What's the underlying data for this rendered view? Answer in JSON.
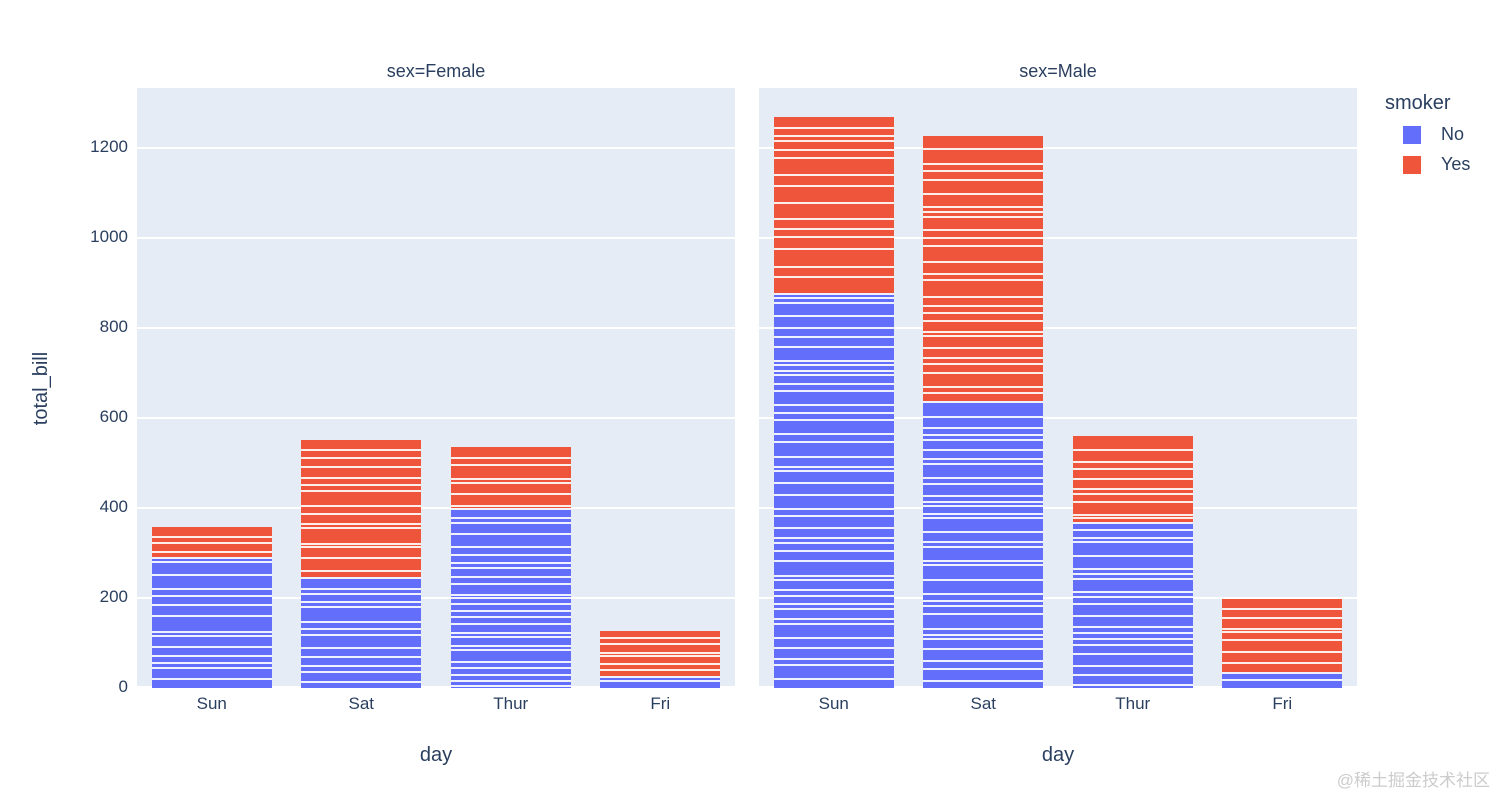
{
  "figure": {
    "watermark": "@稀土掘金技术社区"
  },
  "colors": {
    "no": "#636EFA",
    "yes": "#EF553B",
    "plot_bg": "#E5ECF6",
    "text": "#2A3F5F",
    "grid": "#FFFFFF",
    "watermark": "#CCCCCC"
  },
  "chart_data": {
    "type": "bar",
    "barmode": "stack",
    "facet_by": "sex",
    "color_by": "smoker",
    "ylabel": "total_bill",
    "categories": [
      "Sun",
      "Sat",
      "Thur",
      "Fri"
    ],
    "yticks": [
      0,
      200,
      400,
      600,
      800,
      1000,
      1200
    ],
    "ylim": [
      0,
      1334
    ],
    "grid": "horizontal-white",
    "legend": {
      "title": "smoker",
      "position": "top-right",
      "entries": [
        {
          "label": "No",
          "color": "#636EFA"
        },
        {
          "label": "Yes",
          "color": "#EF553B"
        }
      ]
    },
    "facets": [
      {
        "title": "sex=Female",
        "xlabel": "day",
        "series": [
          {
            "name": "No",
            "color": "#636EFA",
            "values": [
              291.54,
              247.05,
              399.7,
              25.7
            ],
            "record_counts": [
              14,
              13,
              25,
              2
            ]
          },
          {
            "name": "Yes",
            "color": "#EF553B",
            "values": [
              66.16,
              304.0,
              135.19,
              101.61
            ],
            "record_counts": [
              4,
              15,
              7,
              7
            ]
          }
        ],
        "totals": [
          357.7,
          551.05,
          534.89,
          127.31
        ]
      },
      {
        "title": "sex=Male",
        "xlabel": "day",
        "series": [
          {
            "name": "No",
            "color": "#636EFA",
            "values": [
              877.34,
              637.73,
              369.73,
              34.95
            ],
            "record_counts": [
              43,
              32,
              20,
              2
            ]
          },
          {
            "name": "Yes",
            "color": "#EF553B",
            "values": [
              392.12,
              589.62,
              191.71,
              163.62
            ],
            "record_counts": [
              15,
              27,
              10,
              8
            ]
          }
        ],
        "totals": [
          1269.46,
          1227.35,
          561.44,
          198.57
        ]
      }
    ]
  }
}
